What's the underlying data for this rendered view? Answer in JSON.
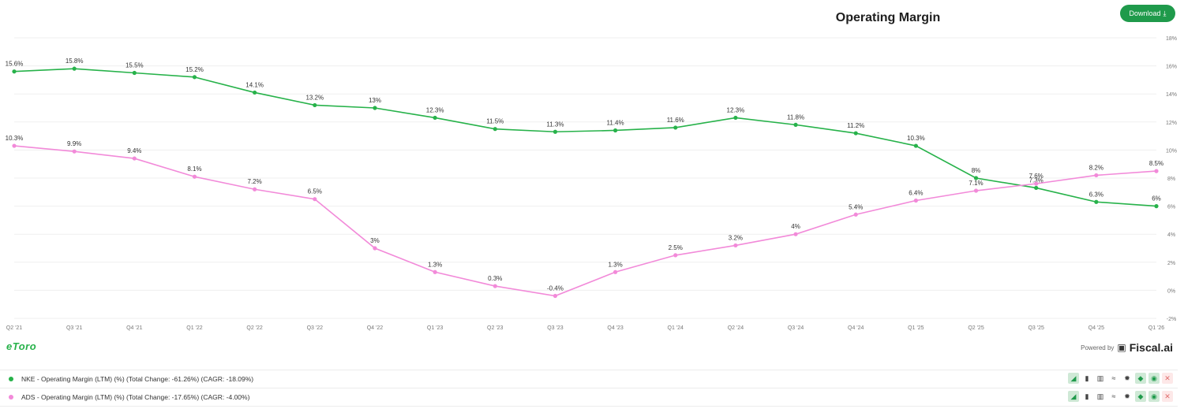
{
  "title": "Operating Margin",
  "download_label": "Download",
  "download_icon": "download-icon",
  "brand_left": "eToro",
  "powered_by": "Powered by",
  "brand_right": "Fiscal.ai",
  "colors": {
    "nke": "#27b24a",
    "ads": "#f28ad9",
    "accent": "#1f9a4b"
  },
  "chart_data": {
    "type": "line",
    "title": "Operating Margin",
    "categories": [
      "Q2 '21",
      "Q3 '21",
      "Q4 '21",
      "Q1 '22",
      "Q2 '22",
      "Q3 '22",
      "Q4 '22",
      "Q1 '23",
      "Q2 '23",
      "Q3 '23",
      "Q4 '23",
      "Q1 '24",
      "Q2 '24",
      "Q3 '24",
      "Q4 '24",
      "Q1 '25",
      "Q2 '25",
      "Q3 '25",
      "Q4 '25",
      "Q1 '26"
    ],
    "ylim": [
      -2,
      18
    ],
    "yticks": [
      -2,
      0,
      2,
      4,
      6,
      8,
      10,
      12,
      14,
      16,
      18
    ],
    "ytick_labels": [
      "-2%",
      "0%",
      "2%",
      "4%",
      "6%",
      "8%",
      "10%",
      "12%",
      "14%",
      "16%",
      "18%"
    ],
    "grid": true,
    "series": [
      {
        "name": "NKE",
        "values": [
          15.6,
          15.8,
          15.5,
          15.2,
          14.1,
          13.2,
          13,
          12.3,
          11.5,
          11.3,
          11.4,
          11.6,
          12.3,
          11.8,
          11.2,
          10.3,
          8,
          7.3,
          6.3,
          6
        ],
        "labels": [
          "15.6%",
          "15.8%",
          "15.5%",
          "15.2%",
          "14.1%",
          "13.2%",
          "13%",
          "12.3%",
          "11.5%",
          "11.3%",
          "11.4%",
          "11.6%",
          "12.3%",
          "11.8%",
          "11.2%",
          "10.3%",
          "8%",
          "7.3%",
          "6.3%",
          "6%"
        ]
      },
      {
        "name": "ADS",
        "values": [
          10.3,
          9.9,
          9.4,
          8.1,
          7.2,
          6.5,
          3,
          1.3,
          0.3,
          -0.4,
          1.3,
          2.5,
          3.2,
          4,
          5.4,
          6.4,
          7.1,
          7.6,
          8.2,
          8.5
        ],
        "labels": [
          "10.3%",
          "9.9%",
          "9.4%",
          "8.1%",
          "7.2%",
          "6.5%",
          "3%",
          "1.3%",
          "0.3%",
          "-0.4%",
          "1.3%",
          "2.5%",
          "3.2%",
          "4%",
          "5.4%",
          "6.4%",
          "7.1%",
          "7.6%",
          "8.2%",
          "8.5%"
        ]
      }
    ]
  },
  "legend": [
    {
      "text": "NKE - Operating Margin (LTM) (%) (Total Change: -61.26%) (CAGR: -18.09%)",
      "color": "#27b24a"
    },
    {
      "text": "ADS - Operating Margin (LTM) (%) (Total Change: -17.65%) (CAGR: -4.00%)",
      "color": "#f28ad9"
    }
  ],
  "legend_tools": [
    "area-chart-icon",
    "bar-chart-icon",
    "stacked-bar-icon",
    "line-style-icon",
    "settings-icon",
    "tag-icon",
    "eye-icon",
    "remove-icon"
  ]
}
